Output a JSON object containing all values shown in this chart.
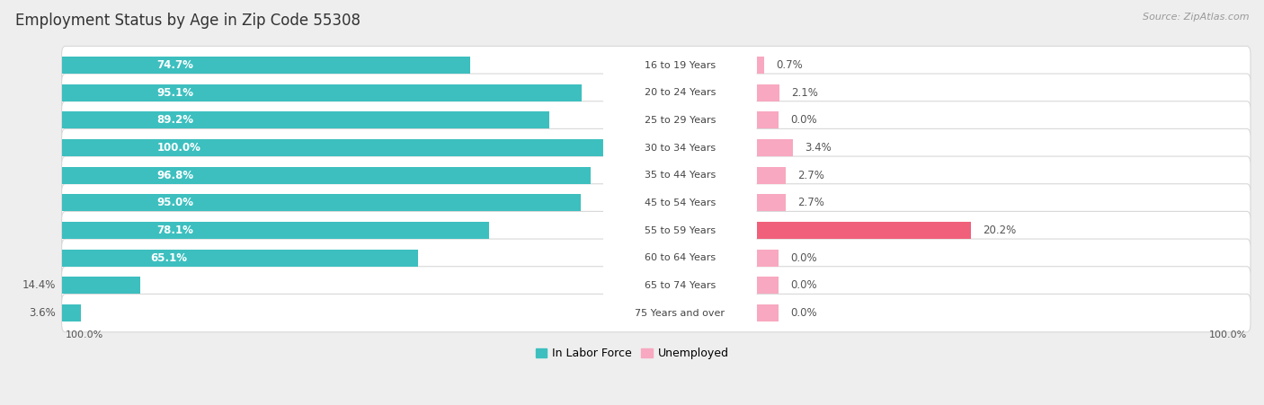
{
  "title": "Employment Status by Age in Zip Code 55308",
  "source": "Source: ZipAtlas.com",
  "age_groups": [
    "16 to 19 Years",
    "20 to 24 Years",
    "25 to 29 Years",
    "30 to 34 Years",
    "35 to 44 Years",
    "45 to 54 Years",
    "55 to 59 Years",
    "60 to 64 Years",
    "65 to 74 Years",
    "75 Years and over"
  ],
  "labor_force": [
    74.7,
    95.1,
    89.2,
    100.0,
    96.8,
    95.0,
    78.1,
    65.1,
    14.4,
    3.6
  ],
  "unemployed": [
    0.7,
    2.1,
    0.0,
    3.4,
    2.7,
    2.7,
    20.2,
    0.0,
    0.0,
    0.0
  ],
  "labor_force_color": "#3dbfbf",
  "unemployed_color": "#f8a8c0",
  "unemployed_large_color": "#f0607a",
  "background_color": "#eeeeee",
  "row_bg_color": "#ffffff",
  "row_border_color": "#d8d8d8",
  "title_color": "#333333",
  "source_color": "#999999",
  "white_label_color": "#ffffff",
  "dark_label_color": "#555555",
  "bar_height": 0.62,
  "label_fontsize": 8.5,
  "title_fontsize": 12,
  "source_fontsize": 8,
  "legend_fontsize": 9
}
